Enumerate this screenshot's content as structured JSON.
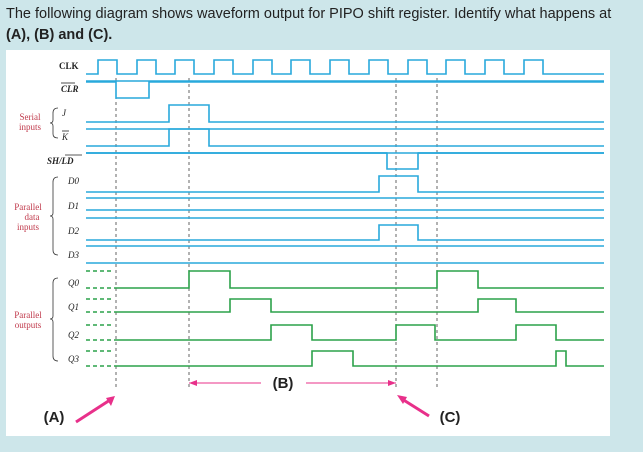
{
  "question": {
    "text": "The following diagram shows waveform output for PIPO shift register. Identify what happens at",
    "bold_part": "(A), (B) and (C)."
  },
  "diagram": {
    "signals": {
      "clk": "CLK",
      "clr": "CLR",
      "j": "J",
      "k": "K",
      "shld": "SH/LD",
      "d0": "D0",
      "d1": "D1",
      "d2": "D2",
      "d3": "D3",
      "q0": "Q0",
      "q1": "Q1",
      "q2": "Q2",
      "q3": "Q3"
    },
    "groups": {
      "serial": [
        "Serial",
        "inputs"
      ],
      "parallel_data": [
        "Parallel",
        "data",
        "inputs"
      ],
      "parallel_outputs": [
        "Parallel",
        "outputs"
      ]
    },
    "markers": {
      "a": "(A)",
      "b": "(B)",
      "c": "(C)"
    },
    "colors": {
      "signal": "#29a9dc",
      "output": "#2ca24a",
      "marker": "#e8308a",
      "label": "#c0394b"
    }
  }
}
